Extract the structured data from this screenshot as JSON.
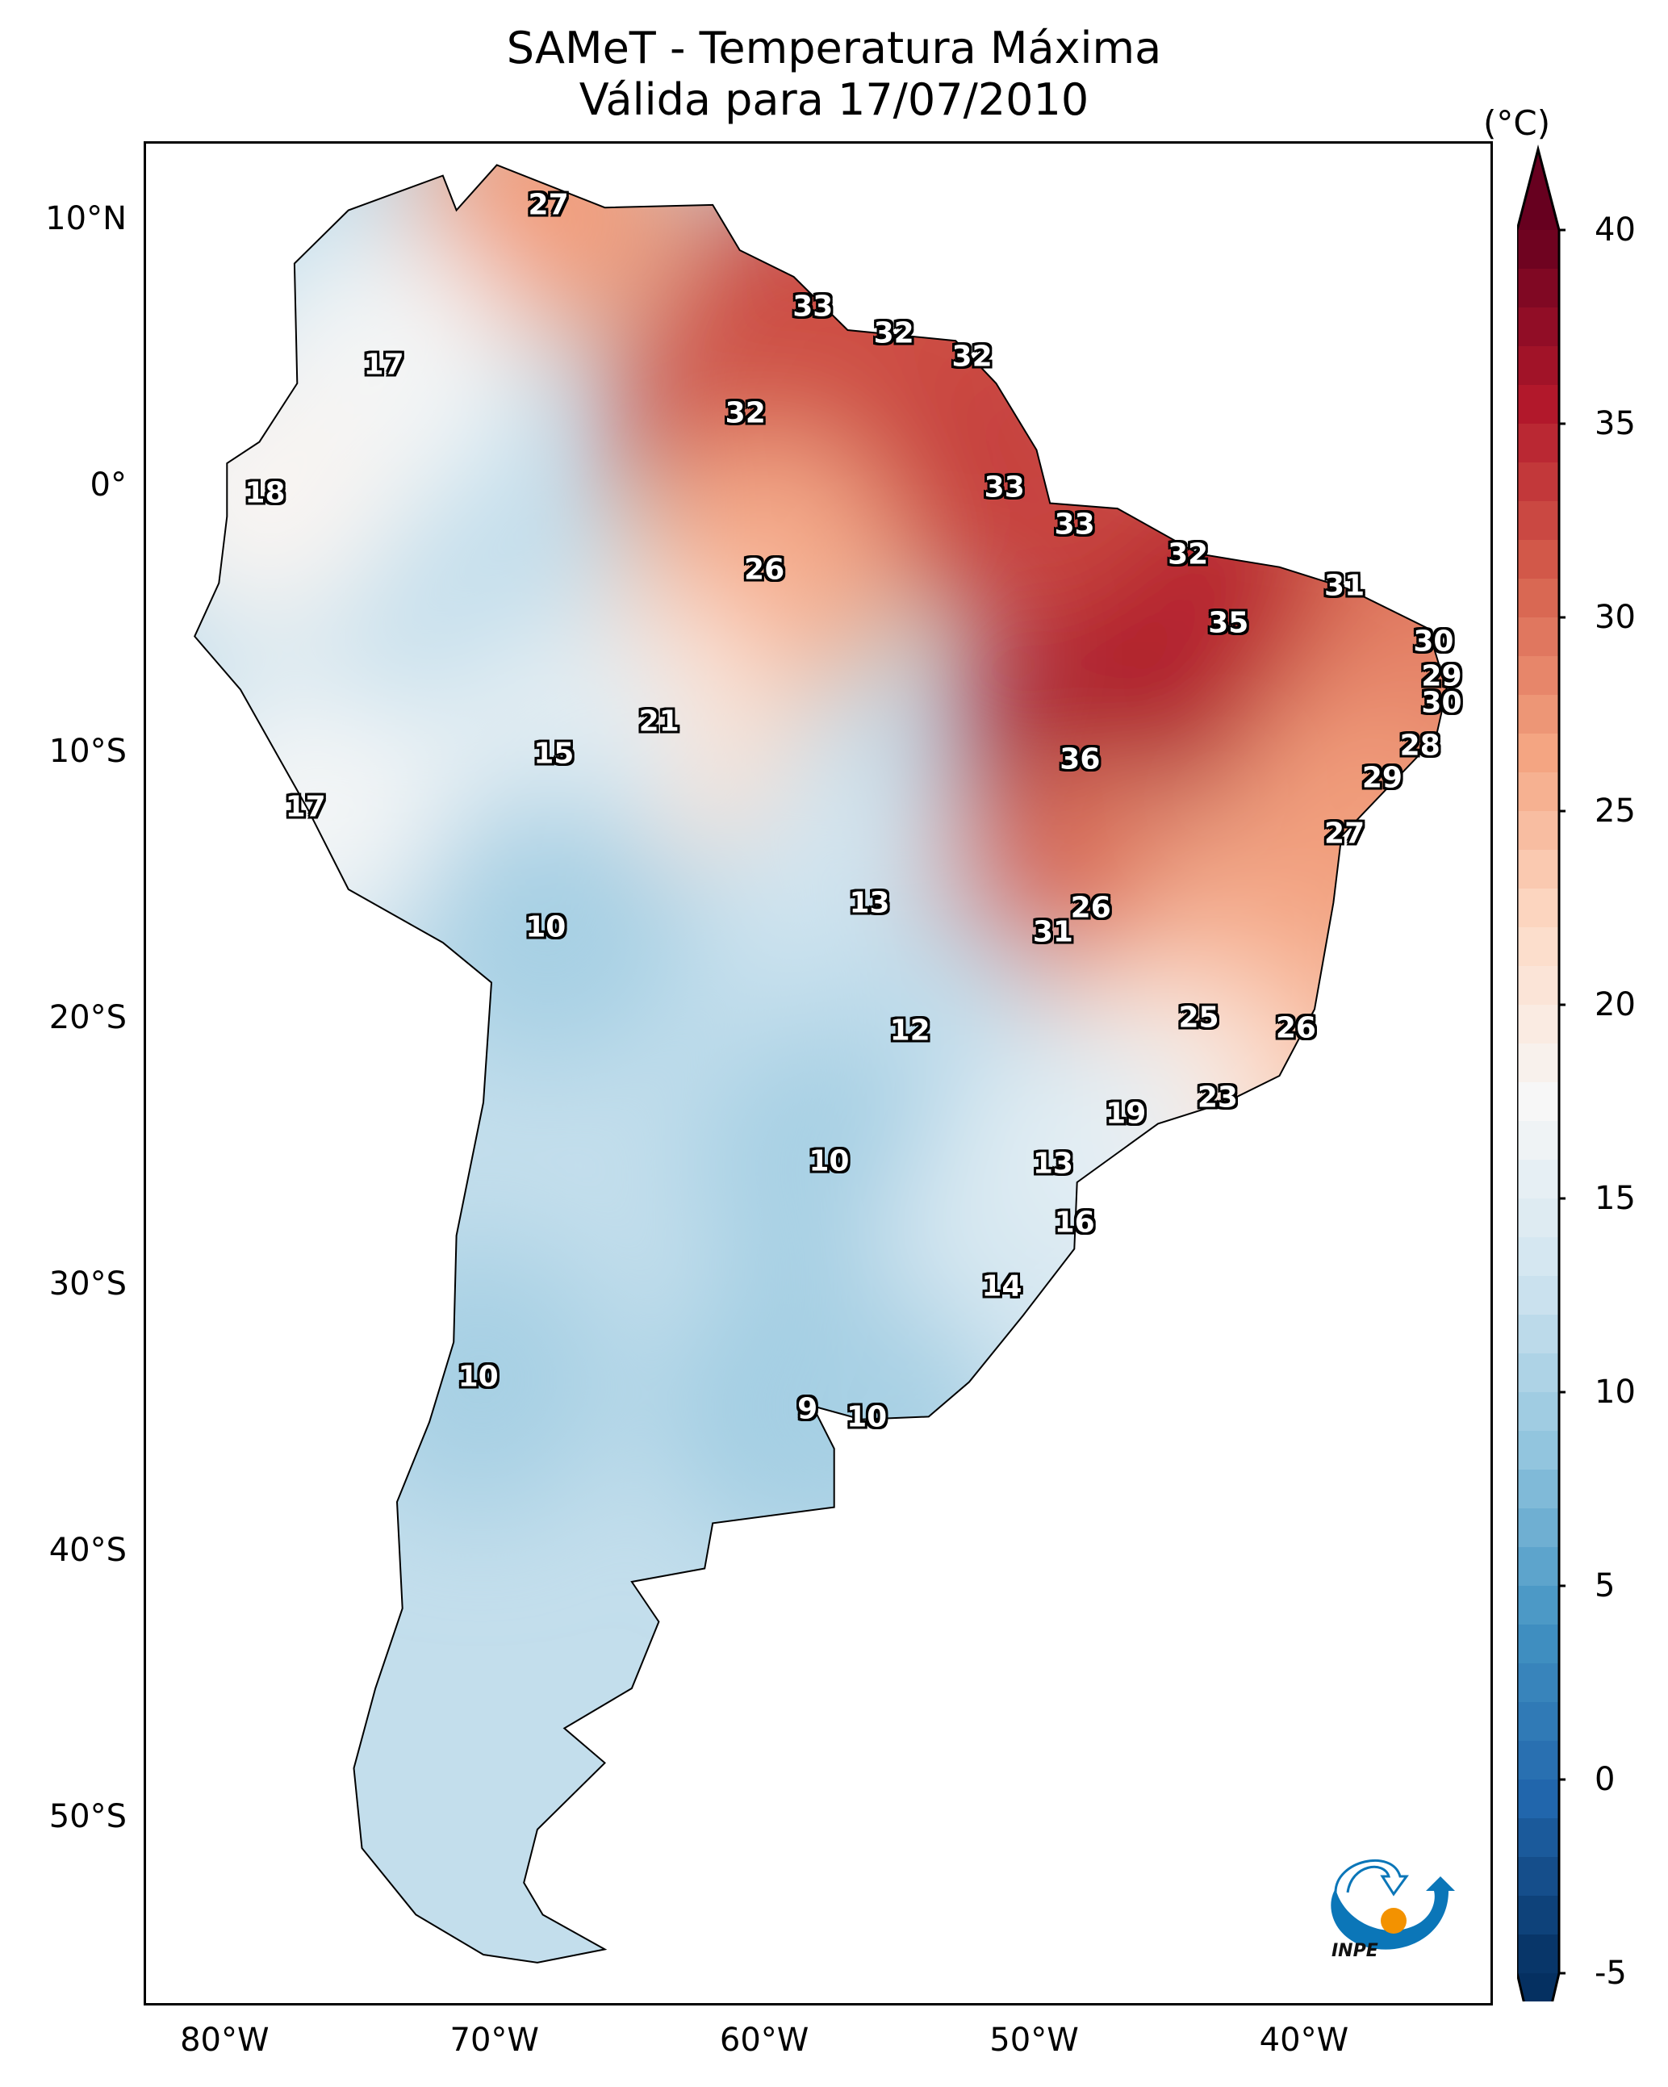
{
  "chart_data": {
    "type": "heatmap",
    "title": "SAMeT - Temperatura Máxima",
    "subtitle": "Válida para 17/07/2010",
    "variable": "Daily maximum temperature",
    "units": "(°C)",
    "xlabel": "",
    "ylabel": "",
    "lon_range": [
      -83,
      -33
    ],
    "lat_range": [
      -57,
      13
    ],
    "x_ticks": [
      "80°W",
      "70°W",
      "60°W",
      "50°W",
      "40°W"
    ],
    "y_ticks": [
      "10°N",
      "0°",
      "10°S",
      "20°S",
      "30°S",
      "40°S",
      "50°S"
    ],
    "colorbar": {
      "colormap": "RdBu_r",
      "range": [
        -5,
        40
      ],
      "ticks": [
        "40",
        "35",
        "30",
        "25",
        "20",
        "15",
        "10",
        "5",
        "0",
        "-5"
      ],
      "extend": "both",
      "colors": [
        "#053061",
        "#2166ac",
        "#4393c3",
        "#92c5de",
        "#d1e5f0",
        "#f7f7f7",
        "#fddbc7",
        "#f4a582",
        "#d6604d",
        "#b2182b",
        "#67001f"
      ]
    },
    "city_values": [
      {
        "value": "27",
        "lon": -68.0,
        "lat": 10.6
      },
      {
        "value": "17",
        "lon": -74.1,
        "lat": 4.6
      },
      {
        "value": "33",
        "lon": -58.2,
        "lat": 6.8
      },
      {
        "value": "32",
        "lon": -55.2,
        "lat": 5.8
      },
      {
        "value": "32",
        "lon": -52.3,
        "lat": 4.9
      },
      {
        "value": "32",
        "lon": -60.7,
        "lat": 2.8
      },
      {
        "value": "18",
        "lon": -78.5,
        "lat": -0.2
      },
      {
        "value": "33",
        "lon": -51.1,
        "lat": 0.0
      },
      {
        "value": "26",
        "lon": -60.0,
        "lat": -3.1
      },
      {
        "value": "33",
        "lon": -48.5,
        "lat": -1.4
      },
      {
        "value": "32",
        "lon": -44.3,
        "lat": -2.5
      },
      {
        "value": "31",
        "lon": -38.5,
        "lat": -3.7
      },
      {
        "value": "35",
        "lon": -42.8,
        "lat": -5.1
      },
      {
        "value": "30",
        "lon": -35.2,
        "lat": -5.8
      },
      {
        "value": "29",
        "lon": -34.9,
        "lat": -7.1
      },
      {
        "value": "30",
        "lon": -34.9,
        "lat": -8.1
      },
      {
        "value": "28",
        "lon": -35.7,
        "lat": -9.7
      },
      {
        "value": "21",
        "lon": -63.9,
        "lat": -8.8
      },
      {
        "value": "15",
        "lon": -67.8,
        "lat": -10.0
      },
      {
        "value": "36",
        "lon": -48.3,
        "lat": -10.2
      },
      {
        "value": "29",
        "lon": -37.1,
        "lat": -10.9
      },
      {
        "value": "17",
        "lon": -77.0,
        "lat": -12.0
      },
      {
        "value": "27",
        "lon": -38.5,
        "lat": -13.0
      },
      {
        "value": "13",
        "lon": -56.1,
        "lat": -15.6
      },
      {
        "value": "26",
        "lon": -47.9,
        "lat": -15.8
      },
      {
        "value": "31",
        "lon": -49.3,
        "lat": -16.7
      },
      {
        "value": "10",
        "lon": -68.1,
        "lat": -16.5
      },
      {
        "value": "25",
        "lon": -43.9,
        "lat": -19.9
      },
      {
        "value": "26",
        "lon": -40.3,
        "lat": -20.3
      },
      {
        "value": "12",
        "lon": -54.6,
        "lat": -20.4
      },
      {
        "value": "23",
        "lon": -43.2,
        "lat": -22.9
      },
      {
        "value": "19",
        "lon": -46.6,
        "lat": -23.5
      },
      {
        "value": "10",
        "lon": -57.6,
        "lat": -25.3
      },
      {
        "value": "13",
        "lon": -49.3,
        "lat": -25.4
      },
      {
        "value": "16",
        "lon": -48.5,
        "lat": -27.6
      },
      {
        "value": "14",
        "lon": -51.2,
        "lat": -30.0
      },
      {
        "value": "10",
        "lon": -70.6,
        "lat": -33.4
      },
      {
        "value": "9",
        "lon": -58.4,
        "lat": -34.6
      },
      {
        "value": "10",
        "lon": -56.2,
        "lat": -34.9
      }
    ],
    "grid": false,
    "legend": "right colorbar"
  },
  "logo": {
    "label": "INPE"
  }
}
